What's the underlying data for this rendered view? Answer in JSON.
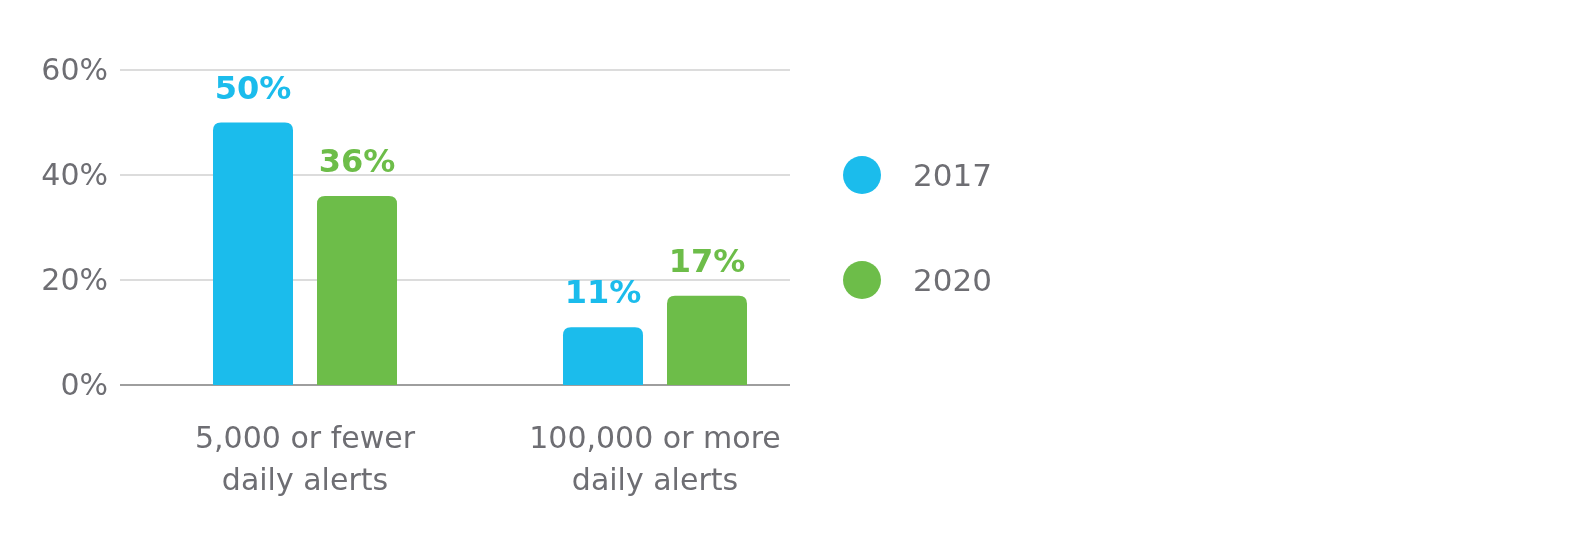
{
  "chart_data": {
    "type": "bar",
    "categories": [
      "5,000 or fewer daily alerts",
      "100,000 or more daily alerts"
    ],
    "series": [
      {
        "name": "2017",
        "color": "#1bbcec",
        "values": [
          50,
          11
        ],
        "value_labels": [
          "50%",
          "11%"
        ]
      },
      {
        "name": "2020",
        "color": "#6dbd49",
        "values": [
          36,
          17
        ],
        "value_labels": [
          "36%",
          "17%"
        ]
      }
    ],
    "ylim": [
      0,
      60
    ],
    "yticks": [
      {
        "value": 0,
        "label": "0%"
      },
      {
        "value": 20,
        "label": "20%"
      },
      {
        "value": 40,
        "label": "40%"
      },
      {
        "value": 60,
        "label": "60%"
      }
    ],
    "grid": "y",
    "legend": "right"
  }
}
